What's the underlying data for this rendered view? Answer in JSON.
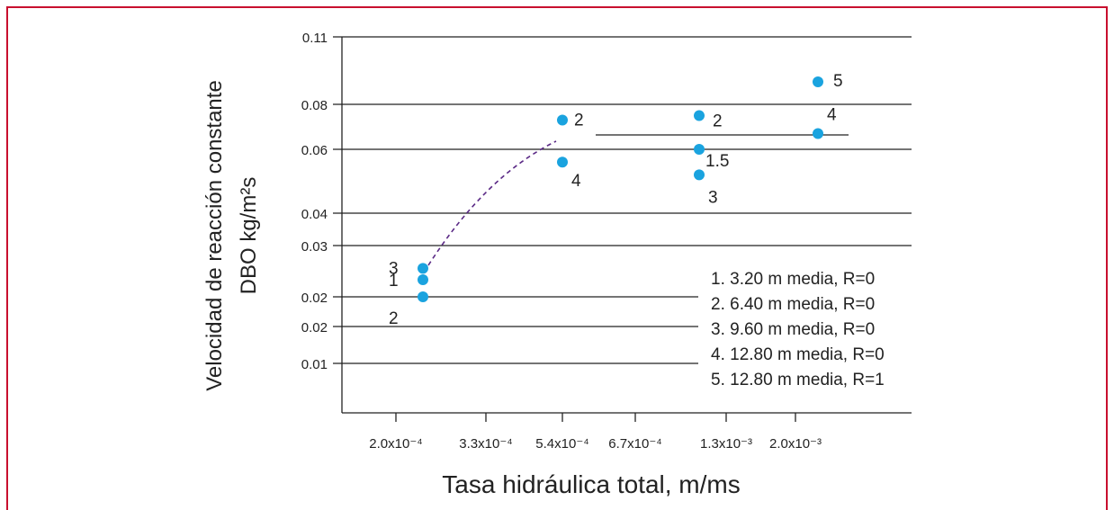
{
  "colors": {
    "frame": "#c8102e",
    "point": "#1aa3df",
    "curve": "#5b2a86",
    "axis": "#222222"
  },
  "chart_data": {
    "type": "scatter",
    "xlabel": "Tasa hidráulica total, m/ms",
    "ylabel_line1": "Velocidad de reacción constante",
    "ylabel_line2": "DBO kg/m²s",
    "x_categories": [
      "2.0x10⁻⁴",
      "3.3x10⁻⁴",
      "5.4x10⁻⁴",
      "6.7x10⁻⁴",
      "1.3x10⁻³",
      "2.0x10⁻³"
    ],
    "y_tick_labels": [
      "0.11",
      "0.08",
      "0.06",
      "0.04",
      "0.03",
      "0.02",
      "0.02",
      "0.01"
    ],
    "points": [
      {
        "x": "2.0x10⁻⁴",
        "y": 0.026,
        "label": "3"
      },
      {
        "x": "2.0x10⁻⁴",
        "y": 0.024,
        "label": "1"
      },
      {
        "x": "2.0x10⁻⁴",
        "y": 0.021,
        "label": "2"
      },
      {
        "x": "5.4x10⁻⁴",
        "y": 0.073,
        "label": "2"
      },
      {
        "x": "5.4x10⁻⁴",
        "y": 0.056,
        "label": "4"
      },
      {
        "x": "1.3x10⁻³",
        "y": 0.075,
        "label": "2"
      },
      {
        "x": "1.3x10⁻³",
        "y": 0.06,
        "label": "1.5"
      },
      {
        "x": "1.3x10⁻³",
        "y": 0.052,
        "label": "3"
      },
      {
        "x": "2.0x10⁻³",
        "y": 0.09,
        "label": "5"
      },
      {
        "x": "2.0x10⁻³",
        "y": 0.067,
        "label": "4"
      }
    ],
    "legend": [
      "1. 3.20 m media, R=0",
      "2. 6.40 m media, R=0",
      "3. 9.60 m media, R=0",
      "4. 12.80 m media, R=0",
      "5. 12.80 m media, R=1"
    ]
  }
}
